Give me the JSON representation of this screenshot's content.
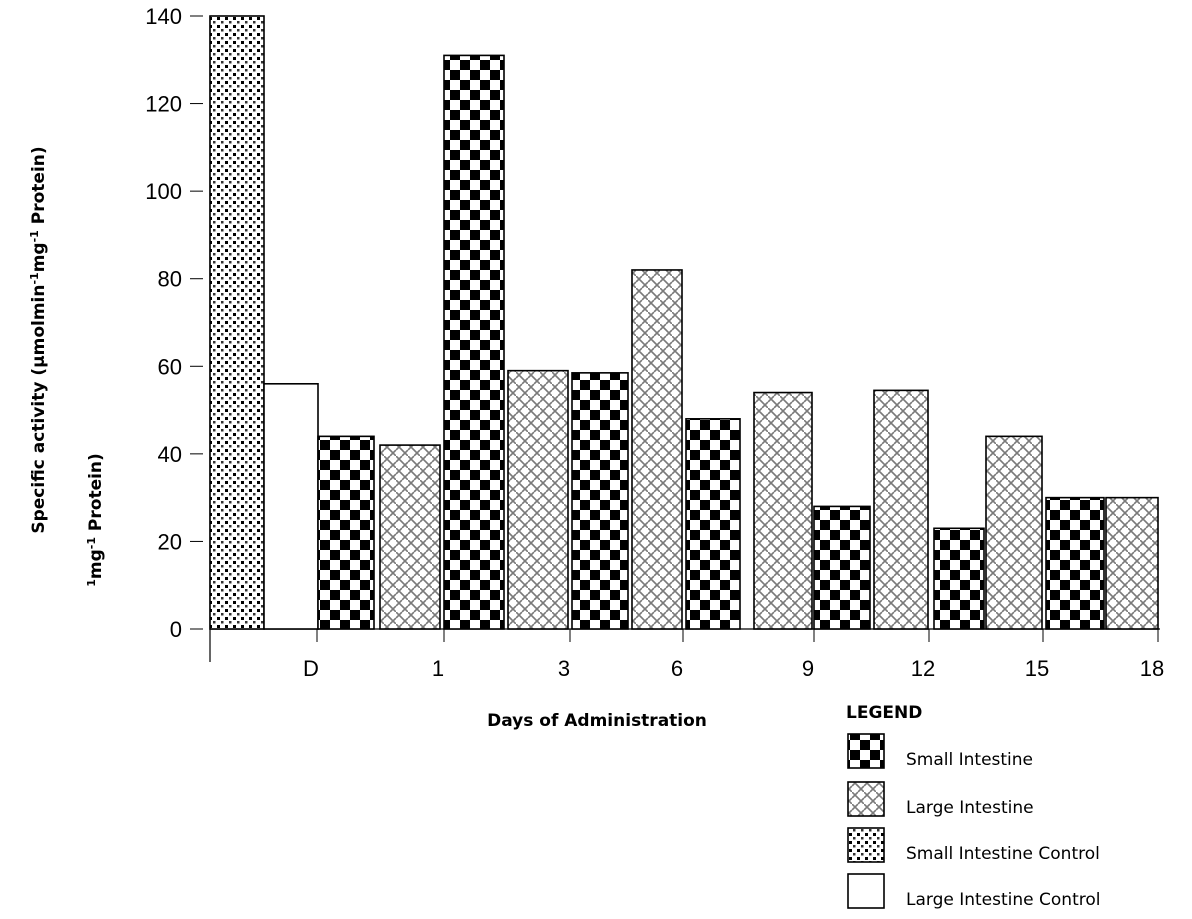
{
  "chart_data": {
    "type": "bar",
    "xlabel": "Days of Administration",
    "ylabel": "Specific activity (µmolmin-1mg-1 Protein)",
    "ylabel_parts": [
      "Specific activity (µmolmin",
      "-1",
      "mg",
      "-1",
      " Protein)"
    ],
    "ylabel_ghost_parts": [
      "1",
      "mg",
      "-1",
      " Protein)"
    ],
    "ylim": [
      0,
      140
    ],
    "yticks": [
      0,
      20,
      40,
      60,
      80,
      100,
      120,
      140
    ],
    "x_tick_labels": [
      "D",
      "1",
      "3",
      "6",
      "9",
      "12",
      "15",
      "18"
    ],
    "legend_title": "LEGEND",
    "legend": [
      {
        "label": "Small Intestine",
        "pattern": "checker"
      },
      {
        "label": "Large Intestine",
        "pattern": "weave"
      },
      {
        "label": "Small Intestine Control",
        "pattern": "dots"
      },
      {
        "label": "Large Intestine Control",
        "pattern": "none"
      }
    ],
    "bars": [
      {
        "series": "Small Intestine Control",
        "value": 140
      },
      {
        "series": "Large Intestine Control",
        "value": 56
      },
      {
        "series": "Small Intestine",
        "value": 44
      },
      {
        "series": "Large Intestine",
        "value": 42
      },
      {
        "series": "Small Intestine",
        "value": 131
      },
      {
        "series": "Large Intestine",
        "value": 59
      },
      {
        "series": "Small Intestine",
        "value": 58.5
      },
      {
        "series": "Large Intestine",
        "value": 82
      },
      {
        "series": "Small Intestine",
        "value": 48
      },
      {
        "series": "Large Intestine",
        "value": 54
      },
      {
        "series": "Small Intestine",
        "value": 28
      },
      {
        "series": "Large Intestine",
        "value": 54.5
      },
      {
        "series": "Small Intestine",
        "value": 23
      },
      {
        "series": "Large Intestine",
        "value": 44
      },
      {
        "series": "Small Intestine",
        "value": 30
      },
      {
        "series": "Large Intestine",
        "value": 30
      }
    ],
    "grid": false,
    "legend_placement": "bottom-right"
  }
}
